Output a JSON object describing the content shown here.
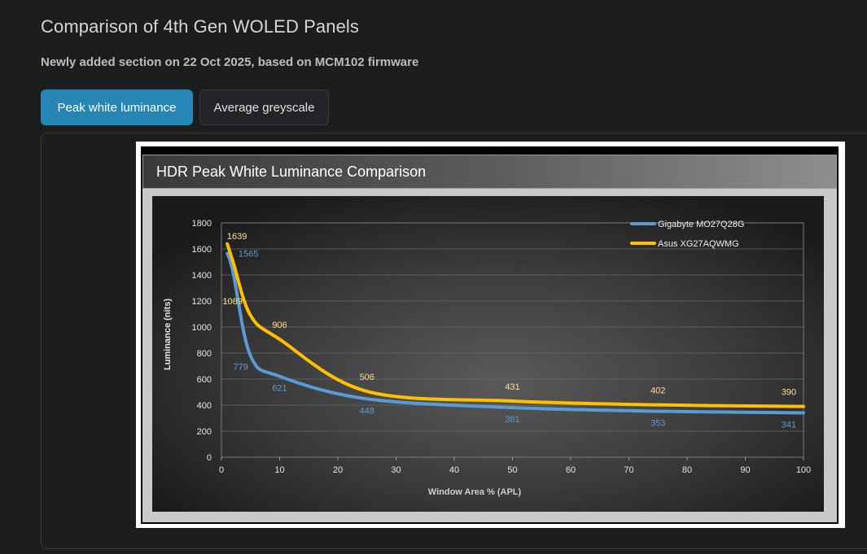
{
  "page": {
    "title": "Comparison of 4th Gen WOLED Panels",
    "subtitle": "Newly added section on 22 Oct 2025, based on MCM102 firmware"
  },
  "tabs": {
    "peak_label": "Peak white luminance",
    "grey_label": "Average greyscale",
    "active": "peak"
  },
  "chart_header": {
    "title": "HDR Peak White Luminance Comparison"
  },
  "colors": {
    "gigabyte": "#5b9bd5",
    "asus": "#ffc000"
  },
  "chart_data": {
    "type": "line",
    "title": "HDR Peak White Luminance Comparison",
    "xlabel": "Window Area % (APL)",
    "ylabel": "Luminance (nits)",
    "xlim": [
      0,
      100
    ],
    "ylim": [
      0,
      1800
    ],
    "xticks": [
      0,
      10,
      20,
      30,
      40,
      50,
      60,
      70,
      80,
      90,
      100
    ],
    "yticks": [
      0,
      200,
      400,
      600,
      800,
      1000,
      1200,
      1400,
      1600,
      1800
    ],
    "grid": true,
    "legend_position": "top-right",
    "series": [
      {
        "name": "Gigabyte MO27Q28G",
        "color": "#5b9bd5",
        "x": [
          1,
          2,
          5,
          10,
          25,
          50,
          75,
          100
        ],
        "values": [
          1565,
          1420,
          779,
          621,
          448,
          381,
          353,
          341
        ],
        "labels": [
          {
            "x": 1,
            "y": 1565,
            "text": "1565"
          },
          {
            "x": 5,
            "y": 779,
            "text": "779"
          },
          {
            "x": 10,
            "y": 621,
            "text": "621"
          },
          {
            "x": 25,
            "y": 448,
            "text": "448"
          },
          {
            "x": 50,
            "y": 381,
            "text": "381"
          },
          {
            "x": 75,
            "y": 353,
            "text": "353"
          },
          {
            "x": 100,
            "y": 341,
            "text": "341"
          }
        ]
      },
      {
        "name": "Asus XG27AQWMG",
        "color": "#ffc000",
        "x": [
          1,
          2,
          5,
          10,
          25,
          50,
          75,
          100
        ],
        "values": [
          1639,
          1500,
          1089,
          906,
          506,
          431,
          402,
          390
        ],
        "labels": [
          {
            "x": 1,
            "y": 1639,
            "text": "1639"
          },
          {
            "x": 5,
            "y": 1089,
            "text": "1089"
          },
          {
            "x": 10,
            "y": 906,
            "text": "906"
          },
          {
            "x": 25,
            "y": 506,
            "text": "506"
          },
          {
            "x": 50,
            "y": 431,
            "text": "431"
          },
          {
            "x": 75,
            "y": 402,
            "text": "402"
          },
          {
            "x": 100,
            "y": 390,
            "text": "390"
          }
        ]
      }
    ]
  }
}
